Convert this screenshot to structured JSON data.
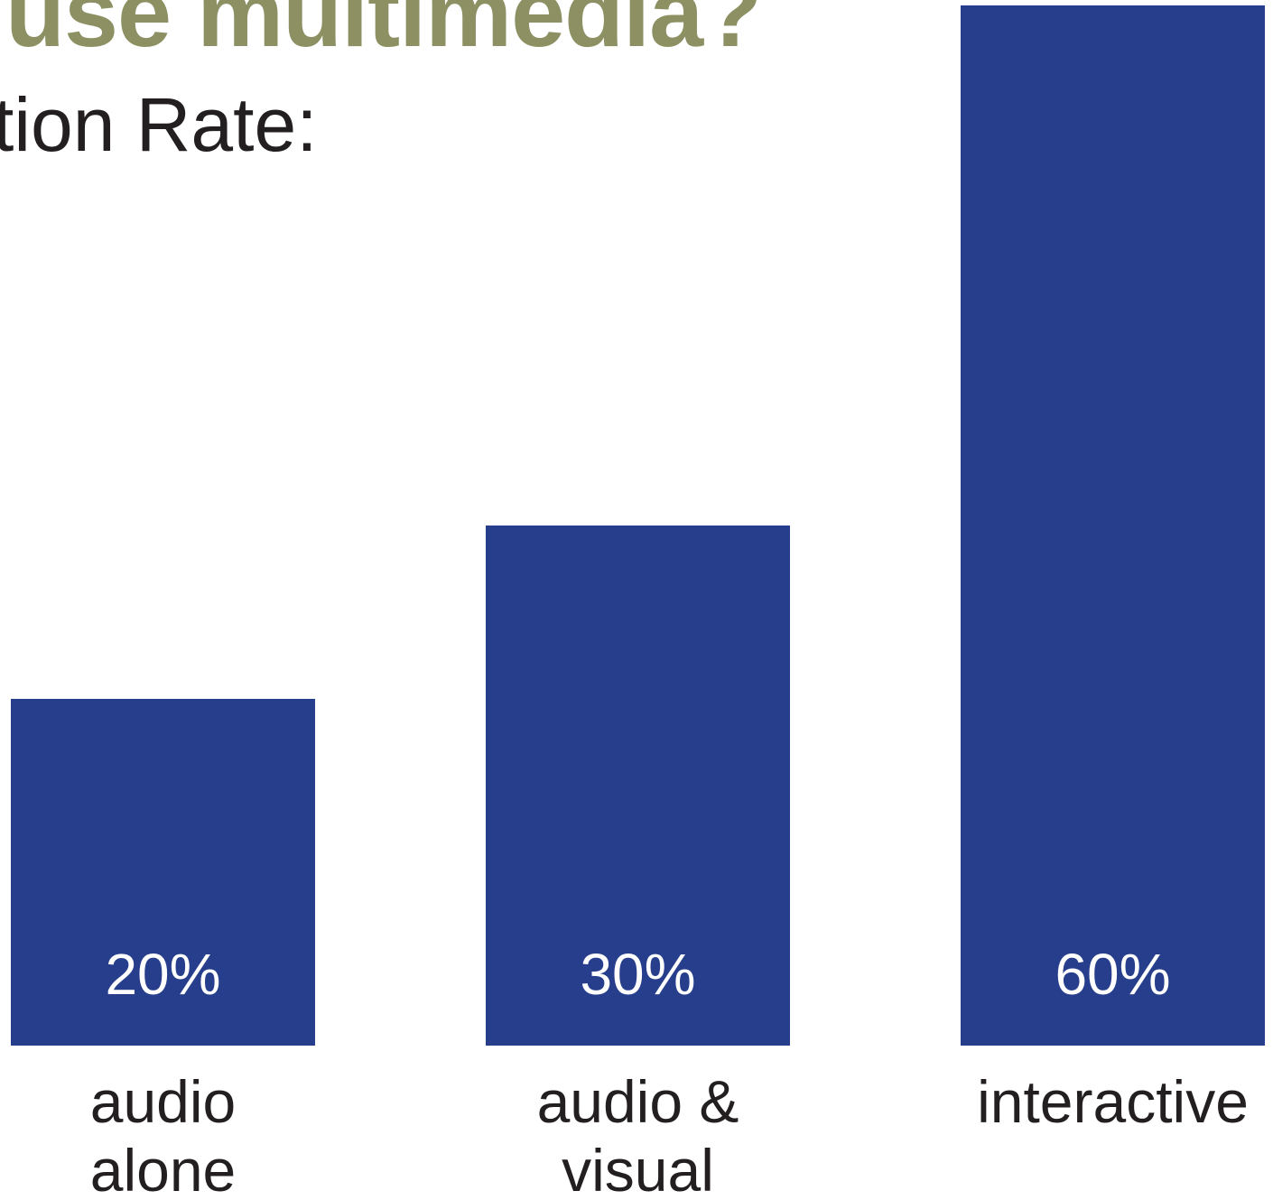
{
  "header": {
    "title": "use multimedia?",
    "subtitle": "tion Rate:"
  },
  "colors": {
    "bar": "#273e8c",
    "title": "#8c9063",
    "text": "#231f20",
    "value_text": "#ffffff"
  },
  "chart_data": {
    "type": "bar",
    "title": "use multimedia?",
    "subtitle": "tion Rate:",
    "categories": [
      [
        "audio",
        "alone"
      ],
      [
        "audio &",
        "visual"
      ],
      [
        "interactive"
      ]
    ],
    "values": [
      20,
      30,
      60
    ],
    "value_labels": [
      "20%",
      "30%",
      "60%"
    ],
    "unit": "%",
    "ylim": [
      0,
      60
    ],
    "grid": false,
    "legend": "none"
  }
}
